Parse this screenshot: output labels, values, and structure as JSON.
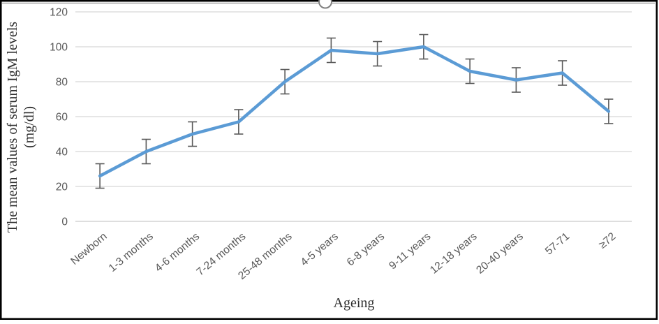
{
  "chart_data": {
    "type": "line",
    "title": "",
    "xlabel": "Ageing",
    "ylabel_line1": "The mean values of serum IgM levels",
    "ylabel_line2": "(mg/dl)",
    "categories": [
      "Newborn",
      "1-3 months",
      "4-6 months",
      "7-24 months",
      "25-48 months",
      "4-5 years",
      "6-8 years",
      "9-11 years",
      "12-18 years",
      "20-40 years",
      "57-71",
      "≥72"
    ],
    "values": [
      26,
      40,
      50,
      57,
      80,
      98,
      96,
      100,
      86,
      81,
      85,
      63
    ],
    "errors": [
      7,
      7,
      7,
      7,
      7,
      7,
      7,
      7,
      7,
      7,
      7,
      7
    ],
    "ylim": [
      0,
      120
    ],
    "yticks": [
      0,
      20,
      40,
      60,
      80,
      100,
      120
    ],
    "grid": true,
    "legend": false,
    "colors": {
      "line": "#5B9BD5",
      "error_bar": "#595959",
      "gridline": "#D6D6D6",
      "axis_line": "#C9C9C9",
      "tick_text": "#595959",
      "frame_border": "#000000",
      "selection_line": "#A8A8A8",
      "selection_handle_stroke": "#7F7F7F"
    }
  }
}
